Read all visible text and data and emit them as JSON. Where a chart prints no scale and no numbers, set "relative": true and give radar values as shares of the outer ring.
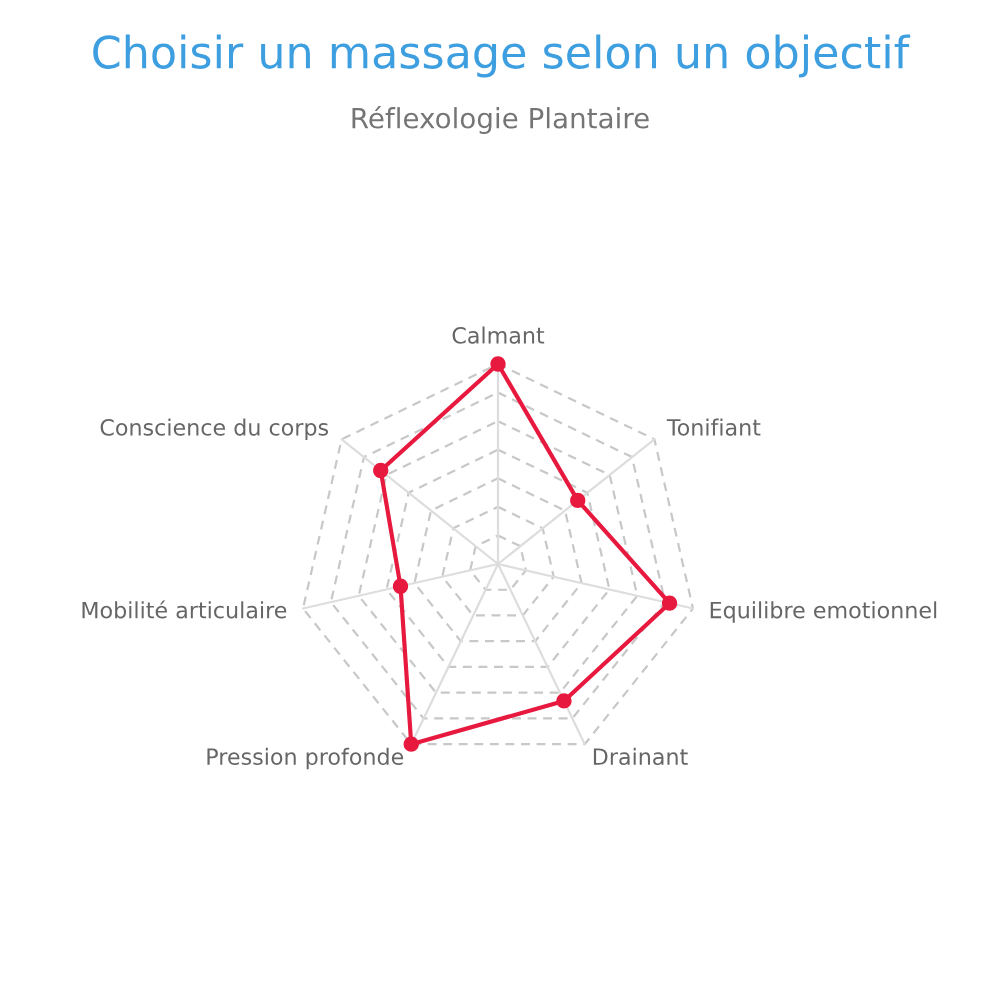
{
  "chart_data": {
    "type": "radar",
    "title": "Choisir un massage selon un objectif",
    "subtitle": "Réflexologie Plantaire",
    "categories": [
      "Calmant",
      "Tonifiant",
      "Equilibre emotionnel",
      "Drainant",
      "Pression profonde",
      "Mobilité articulaire",
      "Conscience du corps"
    ],
    "relative": true,
    "series": [
      {
        "color": "#e8193f",
        "values": [
          1.0,
          0.51,
          0.88,
          0.76,
          1.0,
          0.5,
          0.75
        ]
      }
    ],
    "grid": true,
    "marker": "circle",
    "line_style": "solid"
  }
}
